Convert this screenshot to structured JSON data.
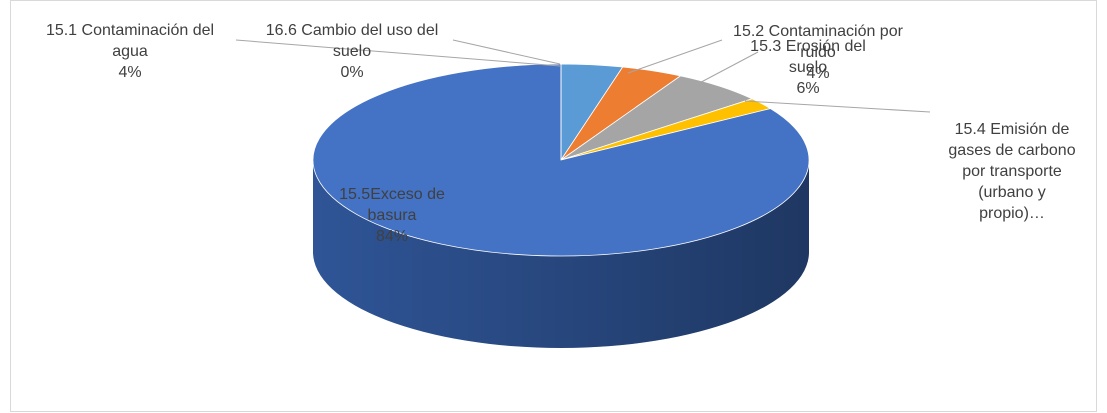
{
  "chart_data": {
    "type": "pie",
    "categories": [
      "15.1 Contaminación del agua",
      "15.2 Contaminación por ruido",
      "15.3 Erosión del suelo",
      "15.4 Emisión de gases de carbono por transporte (urbano y propio)…",
      "15.5Exceso de basura",
      "16.6 Cambio del uso del suelo"
    ],
    "values": [
      4,
      4,
      6,
      2,
      84,
      0
    ],
    "value_labels": [
      "4%",
      "4%",
      "6%",
      null,
      "84%",
      "0%"
    ],
    "colors": [
      "#5b9bd5",
      "#ed7d31",
      "#a5a5a5",
      "#ffc000",
      "#4472c4",
      "#70ad47"
    ],
    "side_colors": [
      "#3d77ad",
      "#b85b1f",
      "#7f7f7f",
      "#c29100",
      "#2f5597",
      "#507e32"
    ]
  }
}
